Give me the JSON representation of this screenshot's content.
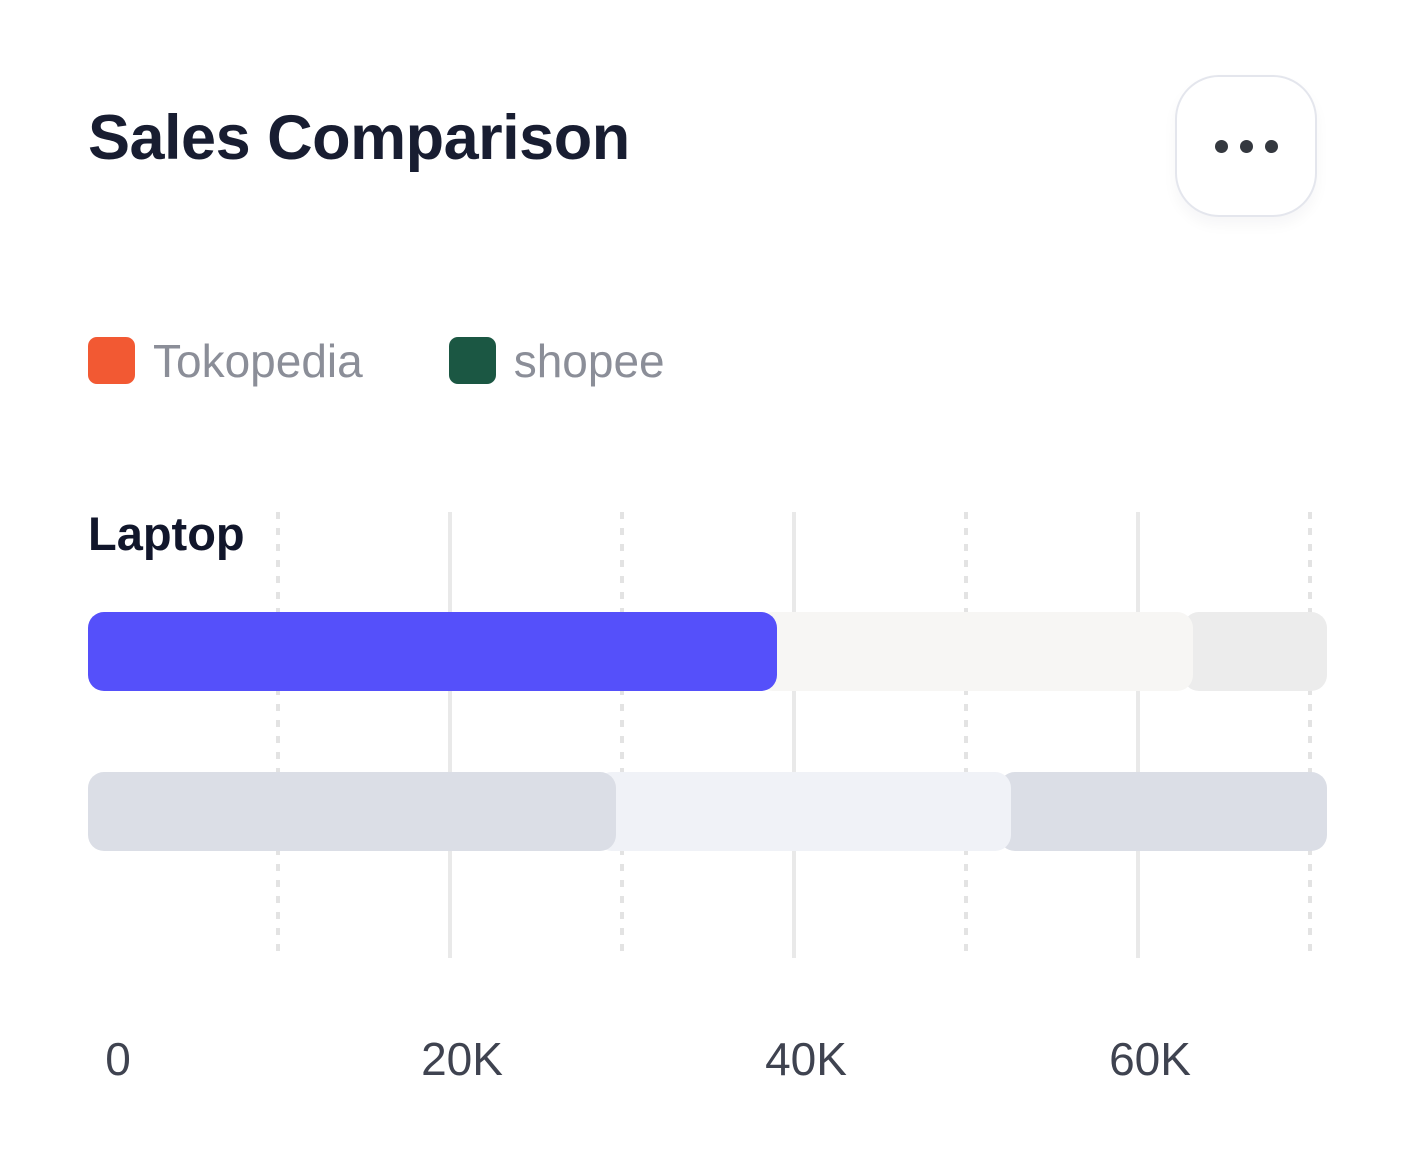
{
  "header": {
    "title": "Sales Comparison",
    "menu_button": {
      "icon": "ellipsis-icon",
      "dot_count": 3,
      "dot_color": "#34383f"
    }
  },
  "legend": {
    "items": [
      {
        "label": "Tokopedia",
        "color": "#f25933"
      },
      {
        "label": "shopee",
        "color": "#1b5743"
      }
    ]
  },
  "chart_data": {
    "type": "bar",
    "orientation": "horizontal",
    "title": "Sales Comparison",
    "categories": [
      "Laptop"
    ],
    "series": [
      {
        "name": "Tokopedia",
        "values": [
          39000
        ],
        "bar_color": "#5550fa"
      },
      {
        "name": "shopee",
        "values": [
          30000
        ],
        "bar_color": "#dbdee6"
      }
    ],
    "xlabel": "",
    "ylabel": "",
    "xlim": [
      0,
      72000
    ],
    "grid": true,
    "legend_position": "top-left",
    "x_ticks": [
      {
        "label": "0",
        "value": 0
      },
      {
        "label": "20K",
        "value": 20000
      },
      {
        "label": "40K",
        "value": 40000
      },
      {
        "label": "60K",
        "value": 60000
      }
    ],
    "gridlines": [
      {
        "value": 10000,
        "style": "dashed"
      },
      {
        "value": 20000,
        "style": "solid"
      },
      {
        "value": 30000,
        "style": "dashed"
      },
      {
        "value": 40000,
        "style": "solid"
      },
      {
        "value": 50000,
        "style": "dashed"
      },
      {
        "value": 60000,
        "style": "solid"
      },
      {
        "value": 70000,
        "style": "dashed"
      }
    ],
    "rows": [
      {
        "name": "tokopedia-bar",
        "segments": [
          {
            "name": "value-fill",
            "color": "#5550fa",
            "from": 0,
            "to": 0.556,
            "z": 3,
            "interactable": true
          },
          {
            "name": "track-light",
            "color": "#f7f6f4",
            "from": 0.54,
            "to": 0.892,
            "z": 2,
            "interactable": false
          },
          {
            "name": "track-cap",
            "color": "#ececec",
            "from": 0.884,
            "to": 1,
            "z": 1,
            "interactable": false
          }
        ]
      },
      {
        "name": "shopee-bar",
        "segments": [
          {
            "name": "value-fill",
            "color": "#dbdee6",
            "from": 0,
            "to": 0.426,
            "z": 3,
            "interactable": true
          },
          {
            "name": "track-light",
            "color": "#f0f2f7",
            "from": 0.41,
            "to": 0.745,
            "z": 2,
            "interactable": false
          },
          {
            "name": "track-end",
            "color": "#dbdee6",
            "from": 0.735,
            "to": 1,
            "z": 1,
            "interactable": false
          }
        ]
      }
    ]
  },
  "colors": {
    "background": "#ffffff",
    "title_text": "#181d31",
    "legend_label": "#8b8e98",
    "category_label": "#11162b",
    "tick_label": "#3f4350",
    "grid_solid": "#e9e9e9",
    "grid_dashed": "#e3e3e3",
    "accent": "#5550fa"
  }
}
